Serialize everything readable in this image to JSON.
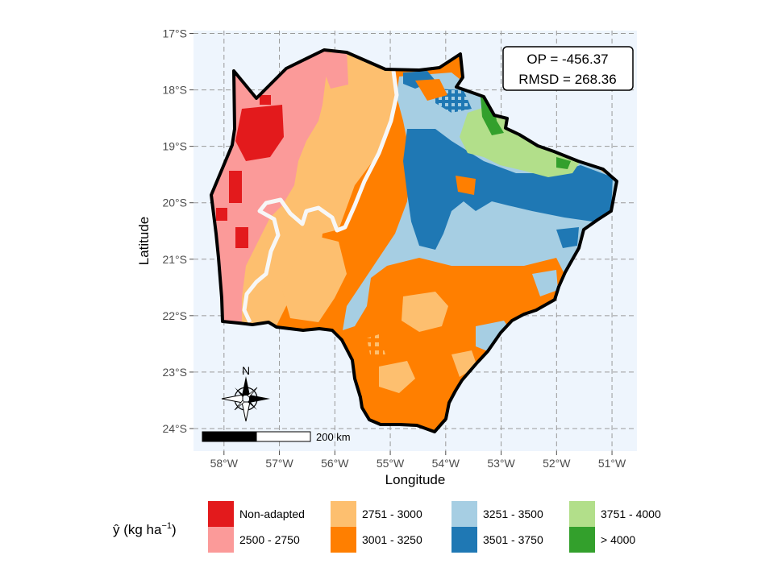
{
  "map": {
    "xlabel": "Longitude",
    "ylabel": "Latitude",
    "lon_ticks": [
      "58°W",
      "57°W",
      "56°W",
      "55°W",
      "54°W",
      "53°W",
      "52°W",
      "51°W"
    ],
    "lat_ticks": [
      "17°S",
      "18°S",
      "19°S",
      "20°S",
      "21°S",
      "22°S",
      "23°S",
      "24°S"
    ],
    "lon_range": [
      -58.55,
      -50.55
    ],
    "lat_range": [
      -24.4,
      -16.95
    ],
    "background_color": "#eef5fd",
    "grid": "dashed"
  },
  "stats": {
    "op": "OP = -456.37",
    "rmsd": "RMSD = 268.36"
  },
  "north_arrow": {
    "label": "N",
    "icon": "compass-rose-icon"
  },
  "scale_bar": {
    "label": "200 km"
  },
  "legend": {
    "title_prefix": "ŷ (kg ha",
    "title_sup": "−1",
    "title_suffix": ")",
    "items": [
      {
        "label": "Non-adapted",
        "color": "#e31a1c"
      },
      {
        "label": "2500 - 2750",
        "color": "#fb9a99"
      },
      {
        "label": "2751 - 3000",
        "color": "#fdbf6f"
      },
      {
        "label": "3001 - 3250",
        "color": "#ff7f00"
      },
      {
        "label": "3251 - 3500",
        "color": "#a6cee3"
      },
      {
        "label": "3501 - 3750",
        "color": "#1f78b4"
      },
      {
        "label": "3751 - 4000",
        "color": "#b2df8a"
      },
      {
        "label": "> 4000",
        "color": "#33a02c"
      }
    ]
  }
}
